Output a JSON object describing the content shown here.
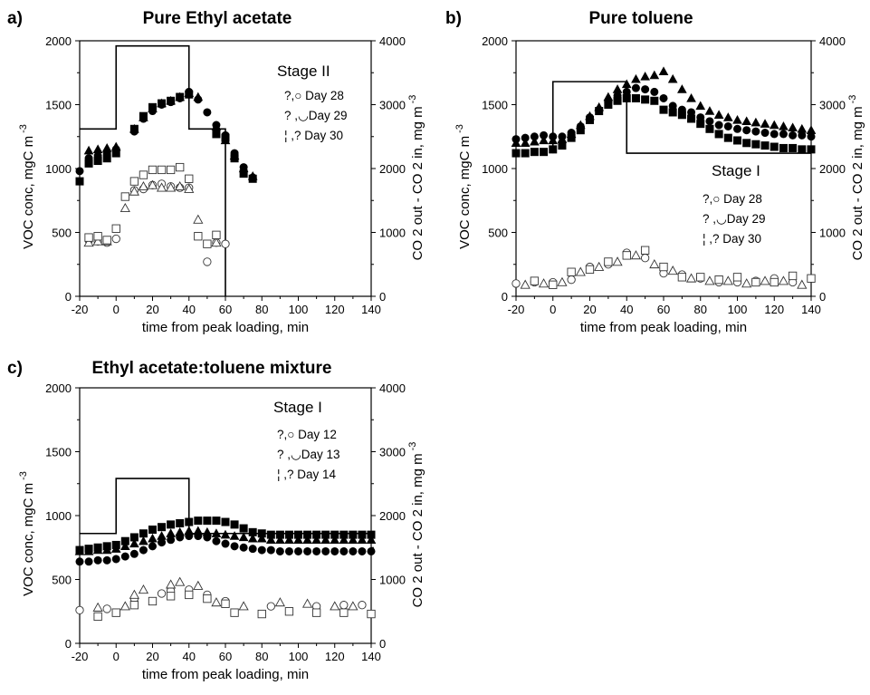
{
  "chart_data": [
    {
      "type": "scatter",
      "panel_label": "a)",
      "title": "Pure Ethyl acetate",
      "xlabel": "time from peak loading, min",
      "ylabel_left": "VOC conc, mgC m",
      "ylabel_left_sup": "-3",
      "ylabel_right": "CO 2  out - CO 2  in, mg m",
      "ylabel_right_sup": "-3",
      "xlim": [
        -20,
        140
      ],
      "ylim_left": [
        0,
        2000
      ],
      "ylim_right": [
        0,
        4000
      ],
      "xticks": [
        "-20",
        "0",
        "20",
        "40",
        "60",
        "80",
        "100",
        "120",
        "140"
      ],
      "yticks_left": [
        "0",
        "500",
        "1000",
        "1500",
        "2000"
      ],
      "yticks_right": [
        "0",
        "1000",
        "2000",
        "3000",
        "4000"
      ],
      "stage": "Stage II",
      "legend": [
        "?,○ Day 28",
        "? ,◡Day 29",
        "¦ ,?  Day 30"
      ],
      "loading_profile": {
        "x": [
          -20,
          0,
          0,
          40,
          40,
          60,
          60
        ],
        "y": [
          1310,
          1310,
          1960,
          1960,
          1310,
          1310,
          0
        ]
      },
      "series": [
        {
          "marker": "circle-filled",
          "x": [
            -20,
            -15,
            -10,
            -5,
            0,
            10,
            15,
            20,
            25,
            30,
            35,
            40,
            45,
            50,
            55,
            60,
            65,
            70,
            75
          ],
          "y": [
            980,
            1080,
            1100,
            1120,
            1150,
            1290,
            1390,
            1450,
            1500,
            1520,
            1550,
            1600,
            1540,
            1440,
            1340,
            1260,
            1120,
            1010,
            930
          ]
        },
        {
          "marker": "triangle-filled",
          "x": [
            -15,
            -10,
            -5,
            0,
            10,
            15,
            20,
            25,
            30,
            35,
            40,
            45,
            55,
            60,
            65,
            70,
            75
          ],
          "y": [
            1140,
            1150,
            1160,
            1170,
            1310,
            1400,
            1470,
            1510,
            1530,
            1560,
            1590,
            1560,
            1330,
            1220,
            1100,
            1000,
            940
          ]
        },
        {
          "marker": "square-filled",
          "x": [
            -20,
            -15,
            -10,
            -5,
            0,
            10,
            15,
            20,
            25,
            30,
            35,
            40,
            55,
            60,
            65,
            70,
            75
          ],
          "y": [
            900,
            1040,
            1060,
            1080,
            1120,
            1310,
            1410,
            1480,
            1510,
            1530,
            1560,
            1580,
            1270,
            1240,
            1080,
            960,
            920
          ]
        },
        {
          "marker": "circle-open",
          "x": [
            -15,
            -10,
            -5,
            0,
            10,
            15,
            20,
            25,
            30,
            35,
            40,
            50,
            55,
            60
          ],
          "y": [
            440,
            430,
            420,
            450,
            830,
            840,
            870,
            880,
            860,
            850,
            850,
            270,
            420,
            410
          ]
        },
        {
          "marker": "triangle-open",
          "x": [
            -15,
            -10,
            -5,
            5,
            10,
            15,
            20,
            25,
            30,
            35,
            40,
            45,
            55
          ],
          "y": [
            420,
            430,
            430,
            690,
            820,
            860,
            870,
            850,
            850,
            860,
            840,
            600,
            420
          ]
        },
        {
          "marker": "square-open",
          "x": [
            -15,
            -10,
            -5,
            0,
            5,
            10,
            15,
            20,
            25,
            30,
            35,
            40,
            45,
            50,
            55
          ],
          "y": [
            460,
            470,
            440,
            530,
            780,
            900,
            950,
            990,
            990,
            990,
            1010,
            920,
            470,
            410,
            480
          ]
        }
      ]
    },
    {
      "type": "scatter",
      "panel_label": "b)",
      "title": "Pure toluene",
      "xlabel": "time from peak loading, min",
      "ylabel_left": "VOC conc, mgC m",
      "ylabel_left_sup": "-3",
      "ylabel_right": "CO 2  out - CO 2  in, mg m",
      "ylabel_right_sup": "-3",
      "xlim": [
        -20,
        140
      ],
      "ylim_left": [
        0,
        2000
      ],
      "ylim_right": [
        0,
        4000
      ],
      "xticks": [
        "-20",
        "0",
        "20",
        "40",
        "60",
        "80",
        "100",
        "120",
        "140"
      ],
      "yticks_left": [
        "0",
        "500",
        "1000",
        "1500",
        "2000"
      ],
      "yticks_right": [
        "0",
        "1000",
        "2000",
        "3000",
        "4000"
      ],
      "stage": "Stage I",
      "legend": [
        "?,○ Day 28",
        "? ,◡Day 29",
        "¦ ,?  Day 30"
      ],
      "loading_profile": {
        "x": [
          0,
          0,
          40,
          40,
          140
        ],
        "y": [
          1120,
          1680,
          1680,
          1120,
          1120
        ]
      },
      "series": [
        {
          "marker": "circle-filled",
          "x": [
            -20,
            -15,
            -10,
            -5,
            0,
            5,
            10,
            15,
            20,
            25,
            30,
            35,
            40,
            45,
            50,
            55,
            60,
            65,
            70,
            75,
            80,
            85,
            90,
            95,
            100,
            105,
            110,
            115,
            120,
            125,
            130,
            135,
            140
          ],
          "y": [
            1230,
            1240,
            1250,
            1260,
            1250,
            1250,
            1280,
            1330,
            1400,
            1460,
            1520,
            1570,
            1600,
            1630,
            1620,
            1600,
            1550,
            1490,
            1460,
            1440,
            1400,
            1370,
            1340,
            1330,
            1310,
            1300,
            1290,
            1280,
            1270,
            1270,
            1260,
            1260,
            1250
          ]
        },
        {
          "marker": "triangle-filled",
          "x": [
            -20,
            -15,
            -10,
            -5,
            0,
            5,
            10,
            15,
            20,
            25,
            30,
            35,
            40,
            45,
            50,
            55,
            60,
            65,
            70,
            75,
            80,
            85,
            90,
            95,
            100,
            105,
            110,
            115,
            120,
            125,
            130,
            135,
            140
          ],
          "y": [
            1200,
            1200,
            1210,
            1220,
            1220,
            1230,
            1270,
            1340,
            1410,
            1480,
            1560,
            1620,
            1660,
            1700,
            1720,
            1730,
            1760,
            1700,
            1620,
            1550,
            1490,
            1450,
            1420,
            1400,
            1380,
            1370,
            1360,
            1350,
            1340,
            1330,
            1320,
            1310,
            1300
          ]
        },
        {
          "marker": "square-filled",
          "x": [
            -20,
            -15,
            -10,
            -5,
            0,
            5,
            10,
            15,
            20,
            25,
            30,
            35,
            40,
            45,
            50,
            55,
            60,
            65,
            70,
            75,
            80,
            85,
            90,
            95,
            100,
            105,
            110,
            115,
            120,
            125,
            130,
            135,
            140
          ],
          "y": [
            1120,
            1120,
            1130,
            1130,
            1150,
            1180,
            1240,
            1300,
            1380,
            1450,
            1500,
            1530,
            1550,
            1550,
            1540,
            1530,
            1460,
            1440,
            1420,
            1390,
            1350,
            1310,
            1270,
            1240,
            1220,
            1200,
            1190,
            1180,
            1170,
            1160,
            1160,
            1150,
            1150
          ]
        },
        {
          "marker": "circle-open",
          "x": [
            -20,
            -10,
            0,
            10,
            20,
            30,
            40,
            50,
            60,
            70,
            80,
            90,
            100,
            110,
            120,
            130
          ],
          "y": [
            100,
            110,
            110,
            130,
            230,
            250,
            340,
            300,
            180,
            170,
            140,
            110,
            110,
            120,
            140,
            110
          ]
        },
        {
          "marker": "triangle-open",
          "x": [
            -15,
            -5,
            5,
            15,
            25,
            35,
            45,
            55,
            65,
            75,
            85,
            95,
            105,
            115,
            125,
            135
          ],
          "y": [
            90,
            100,
            110,
            190,
            230,
            270,
            320,
            250,
            200,
            140,
            120,
            120,
            100,
            120,
            120,
            90
          ]
        },
        {
          "marker": "square-open",
          "x": [
            -10,
            0,
            10,
            20,
            30,
            40,
            50,
            60,
            70,
            80,
            90,
            100,
            110,
            120,
            130,
            140
          ],
          "y": [
            120,
            90,
            190,
            210,
            270,
            320,
            360,
            230,
            150,
            150,
            130,
            150,
            110,
            110,
            160,
            140
          ]
        }
      ]
    },
    {
      "type": "scatter",
      "panel_label": "c)",
      "title": "Ethyl acetate:toluene mixture",
      "xlabel": "time from peak loading, min",
      "ylabel_left": "VOC conc, mgC m",
      "ylabel_left_sup": "-3",
      "ylabel_right": "CO 2  out - CO 2  in, mg m",
      "ylabel_right_sup": "-3",
      "xlim": [
        -20,
        140
      ],
      "ylim_left": [
        0,
        2000
      ],
      "ylim_right": [
        0,
        4000
      ],
      "xticks": [
        "-20",
        "0",
        "20",
        "40",
        "60",
        "80",
        "100",
        "120",
        "140"
      ],
      "yticks_left": [
        "0",
        "500",
        "1000",
        "1500",
        "2000"
      ],
      "yticks_right": [
        "0",
        "1000",
        "2000",
        "3000",
        "4000"
      ],
      "stage": "Stage I",
      "legend": [
        "?,○ Day 12",
        "? ,◡Day 13",
        "¦ ,?  Day 14"
      ],
      "loading_profile": {
        "x": [
          -20,
          0,
          0,
          40,
          40,
          140
        ],
        "y": [
          860,
          860,
          1290,
          1290,
          860,
          860
        ]
      },
      "series": [
        {
          "marker": "circle-filled",
          "x": [
            -20,
            -15,
            -10,
            -5,
            0,
            5,
            10,
            15,
            20,
            25,
            30,
            35,
            40,
            45,
            50,
            55,
            60,
            65,
            70,
            75,
            80,
            85,
            90,
            95,
            100,
            105,
            110,
            115,
            120,
            125,
            130,
            135,
            140
          ],
          "y": [
            640,
            640,
            650,
            650,
            660,
            680,
            700,
            730,
            760,
            790,
            810,
            830,
            840,
            840,
            830,
            800,
            780,
            760,
            750,
            740,
            730,
            730,
            720,
            720,
            720,
            720,
            720,
            720,
            720,
            720,
            720,
            720,
            720
          ]
        },
        {
          "marker": "triangle-filled",
          "x": [
            -20,
            -15,
            -10,
            -5,
            0,
            5,
            10,
            15,
            20,
            25,
            30,
            35,
            40,
            45,
            50,
            55,
            60,
            65,
            70,
            75,
            80,
            85,
            90,
            95,
            100,
            105,
            110,
            115,
            120,
            125,
            130,
            135,
            140
          ],
          "y": [
            720,
            720,
            730,
            730,
            740,
            760,
            780,
            800,
            820,
            840,
            860,
            870,
            880,
            880,
            870,
            860,
            850,
            840,
            830,
            820,
            820,
            810,
            810,
            810,
            810,
            810,
            810,
            810,
            810,
            810,
            810,
            810,
            810
          ]
        },
        {
          "marker": "square-filled",
          "x": [
            -20,
            -15,
            -10,
            -5,
            0,
            5,
            10,
            15,
            20,
            25,
            30,
            35,
            40,
            45,
            50,
            55,
            60,
            65,
            70,
            75,
            80,
            85,
            90,
            95,
            100,
            105,
            110,
            115,
            120,
            125,
            130,
            135,
            140
          ],
          "y": [
            730,
            740,
            750,
            760,
            770,
            800,
            830,
            860,
            890,
            910,
            930,
            940,
            950,
            960,
            960,
            960,
            950,
            930,
            900,
            870,
            860,
            850,
            850,
            850,
            850,
            850,
            850,
            850,
            850,
            850,
            850,
            850,
            850
          ]
        },
        {
          "marker": "circle-open",
          "x": [
            -20,
            -5,
            10,
            25,
            30,
            40,
            50,
            60,
            85,
            110,
            125,
            135
          ],
          "y": [
            260,
            270,
            350,
            390,
            410,
            420,
            380,
            330,
            290,
            290,
            300,
            300
          ]
        },
        {
          "marker": "triangle-open",
          "x": [
            -10,
            5,
            10,
            15,
            30,
            35,
            45,
            55,
            70,
            90,
            105,
            120,
            130
          ],
          "y": [
            280,
            290,
            380,
            420,
            460,
            480,
            450,
            320,
            290,
            320,
            310,
            290,
            290
          ]
        },
        {
          "marker": "square-open",
          "x": [
            -10,
            0,
            10,
            20,
            30,
            40,
            50,
            60,
            65,
            80,
            95,
            110,
            125,
            140
          ],
          "y": [
            210,
            240,
            300,
            330,
            370,
            380,
            350,
            310,
            240,
            230,
            250,
            240,
            240,
            230
          ]
        }
      ]
    }
  ]
}
